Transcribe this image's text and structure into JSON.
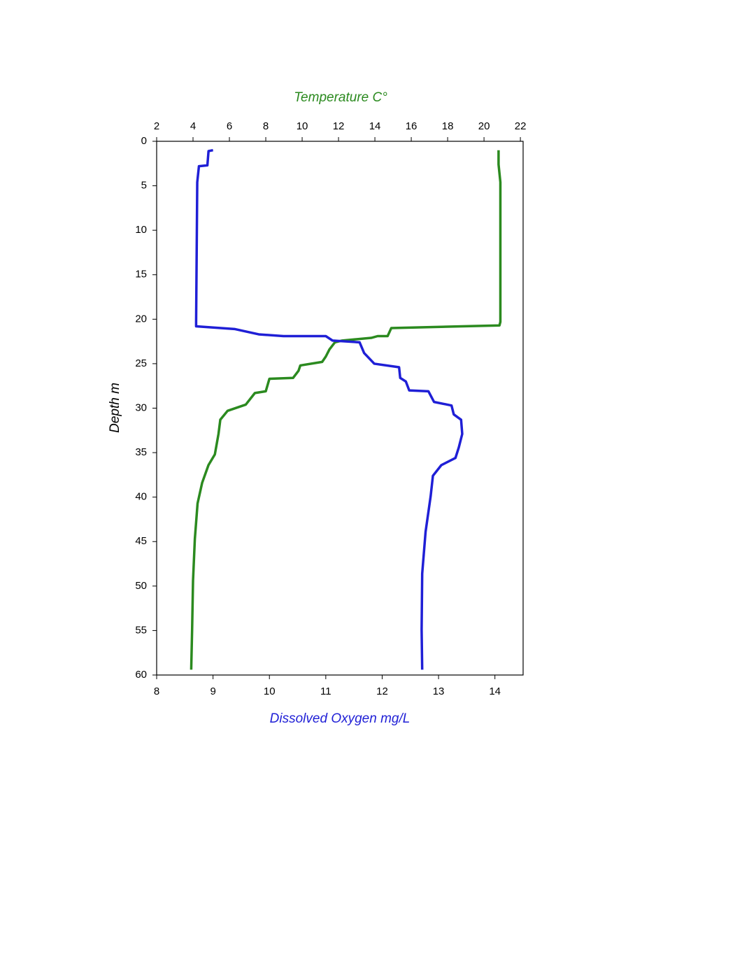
{
  "chart_data": {
    "type": "line",
    "x_label": "Dissolved Oxygen mg/L",
    "x2_label": "Temperature C°",
    "y_label": "Depth m",
    "xlim": [
      8,
      14.5
    ],
    "xticks": [
      8,
      9,
      10,
      11,
      12,
      13,
      14
    ],
    "x2lim": [
      2,
      22.15
    ],
    "x2ticks": [
      2,
      4,
      6,
      8,
      10,
      12,
      14,
      16,
      18,
      20,
      22
    ],
    "ylim": [
      0,
      60
    ],
    "yticks": [
      0,
      5,
      10,
      15,
      20,
      25,
      30,
      35,
      40,
      45,
      50,
      55,
      60
    ],
    "y_inverted": true,
    "grid": false,
    "label_colors": {
      "x": "#1f1fd6",
      "x2": "#2b8a1f",
      "y": "#000000"
    },
    "series": [
      {
        "color": "#2b8a1f",
        "axis": "x2",
        "x": [
          20.8,
          20.8,
          20.9,
          20.9,
          20.85,
          18.8,
          14.9,
          14.7,
          14.15,
          13.8,
          12.2,
          11.8,
          11.5,
          11.3,
          11.1,
          9.9,
          9.8,
          9.5,
          8.2,
          8.0,
          7.4,
          6.9,
          5.9,
          5.5,
          5.4,
          5.2,
          4.85,
          4.5,
          4.25,
          4.1,
          4.0,
          3.95,
          3.9
        ],
        "y": [
          1,
          2.6,
          4.6,
          20.3,
          20.7,
          20.8,
          21.0,
          21.9,
          21.9,
          22.1,
          22.4,
          22.6,
          23.4,
          24.2,
          24.8,
          25.2,
          25.8,
          26.6,
          26.7,
          28.1,
          28.3,
          29.6,
          30.3,
          31.3,
          32.9,
          35.2,
          36.4,
          38.4,
          40.7,
          44.7,
          49.4,
          54.9,
          59.4
        ]
      },
      {
        "color": "#1f1fd6",
        "axis": "x",
        "x": [
          9.0,
          8.92,
          8.9,
          8.75,
          8.72,
          8.7,
          8.7,
          9.38,
          9.81,
          10.25,
          11.0,
          11.12,
          11.6,
          11.68,
          11.86,
          12.3,
          12.32,
          12.42,
          12.48,
          12.82,
          12.92,
          13.23,
          13.27,
          13.4,
          13.42,
          13.36,
          13.3,
          13.05,
          12.9,
          12.86,
          12.77,
          12.71,
          12.7,
          12.71
        ],
        "y": [
          1,
          1.1,
          2.7,
          2.8,
          4.6,
          20.3,
          20.8,
          21.1,
          21.7,
          21.9,
          21.9,
          22.4,
          22.6,
          23.8,
          25.0,
          25.4,
          26.6,
          27.0,
          28.0,
          28.1,
          29.3,
          29.7,
          30.7,
          31.3,
          32.9,
          34.4,
          35.6,
          36.4,
          37.6,
          39.9,
          43.9,
          48.6,
          54.9,
          59.4
        ]
      }
    ]
  }
}
